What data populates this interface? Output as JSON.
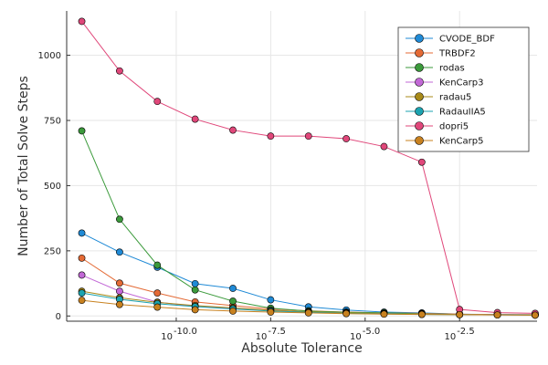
{
  "chart_data": {
    "type": "line",
    "xlabel": "Absolute Tolerance",
    "ylabel": "Number of Total Solve Steps",
    "x_scale": "log10",
    "x_tick_exponents": [
      "-10.0",
      "-7.5",
      "-5.0",
      "-2.5"
    ],
    "x_tick_base": "10",
    "xlim": [
      -12.9,
      -0.45
    ],
    "ylim": [
      -20,
      1170
    ],
    "y_ticks": [
      "0",
      "250",
      "500",
      "750",
      "1000"
    ],
    "grid": true,
    "legend_position": "top-right",
    "x_log10_values": [
      -12.5,
      -11.5,
      -10.5,
      -9.5,
      -8.5,
      -7.5,
      -6.5,
      -5.5,
      -4.5,
      -3.5,
      -2.5,
      -1.5,
      -0.5
    ],
    "series": [
      {
        "name": "CVODE_BDF",
        "color": "#1f8ad6",
        "values": [
          318,
          245,
          187,
          124,
          106,
          62,
          35,
          23,
          15,
          12,
          7,
          6,
          5
        ]
      },
      {
        "name": "TRBDF2",
        "color": "#e46a35",
        "values": [
          222,
          126,
          88,
          54,
          40,
          27,
          20,
          15,
          12,
          10,
          7,
          5,
          5
        ]
      },
      {
        "name": "rodas",
        "color": "#3b9a3b",
        "values": [
          710,
          371,
          195,
          100,
          57,
          30,
          19,
          14,
          12,
          9,
          6,
          5,
          4
        ]
      },
      {
        "name": "KenCarp3",
        "color": "#c268d6",
        "values": [
          157,
          95,
          53,
          37,
          30,
          22,
          15,
          11,
          9,
          7,
          6,
          5,
          4
        ]
      },
      {
        "name": "radau5",
        "color": "#a88a18",
        "values": [
          95,
          70,
          52,
          40,
          31,
          22,
          16,
          12,
          9,
          7,
          6,
          5,
          4
        ]
      },
      {
        "name": "RadauIIA5",
        "color": "#1ba3b0",
        "values": [
          88,
          64,
          47,
          36,
          27,
          19,
          14,
          10,
          8,
          6,
          5,
          4,
          3
        ]
      },
      {
        "name": "dopri5",
        "color": "#e0477a",
        "values": [
          1130,
          940,
          823,
          755,
          713,
          690,
          690,
          680,
          650,
          590,
          25,
          13,
          10
        ]
      },
      {
        "name": "KenCarp5",
        "color": "#c8811f",
        "values": [
          60,
          44,
          34,
          24,
          19,
          15,
          12,
          9,
          7,
          6,
          5,
          4,
          3
        ]
      }
    ]
  }
}
